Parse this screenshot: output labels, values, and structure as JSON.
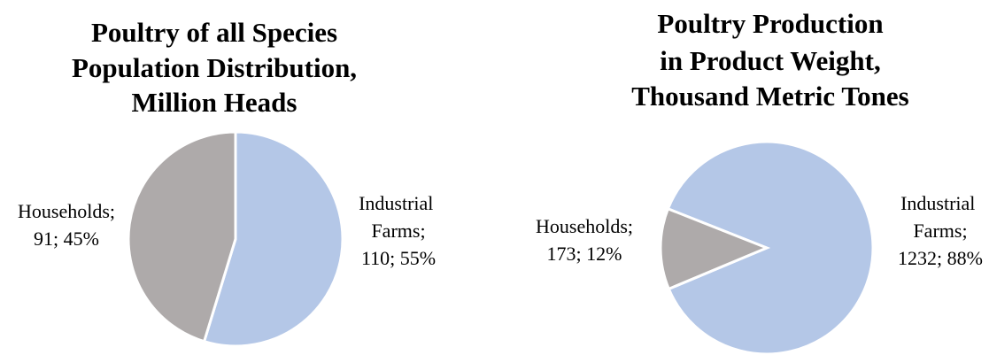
{
  "chart_data": [
    {
      "type": "pie",
      "title": [
        "Poultry of all Species",
        "Population Distribution,",
        "Million Heads"
      ],
      "categories": [
        "Industrial Farms;",
        "Households;"
      ],
      "values": [
        110,
        91
      ],
      "value_labels": [
        "110; 55%",
        "91; 45%"
      ],
      "colors": [
        "#b4c7e7",
        "#aeaaaa"
      ]
    },
    {
      "type": "pie",
      "title": [
        "Poultry Production",
        "in Product Weight,",
        "Thousand Metric Tones"
      ],
      "categories": [
        "Industrial Farms;",
        "Households;"
      ],
      "values": [
        1232,
        173
      ],
      "value_labels": [
        "1232; 88%",
        "173; 12%"
      ],
      "colors": [
        "#b4c7e7",
        "#aeaaaa"
      ]
    }
  ]
}
